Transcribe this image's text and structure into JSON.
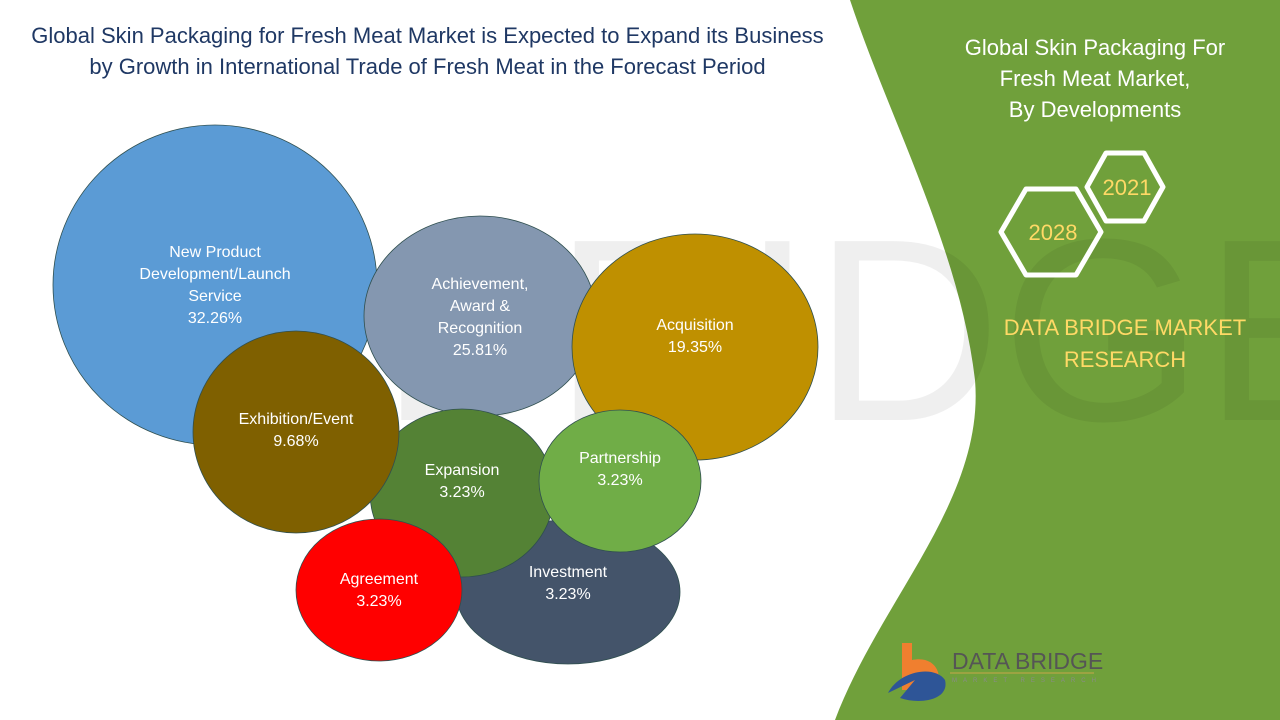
{
  "title": "Global Skin Packaging for Fresh Meat Market is Expected to Expand its Business by Growth in International Trade of Fresh Meat in the Forecast Period",
  "side_panel": {
    "title_lines": [
      "Global Skin Packaging For",
      "Fresh Meat Market,",
      "By Developments"
    ],
    "years": [
      "2021",
      "2028"
    ],
    "brand_lines": [
      "DATA BRIDGE MARKET",
      "RESEARCH"
    ],
    "logo_text": "DATA BRIDGE",
    "logo_subtext": "MARKET RESEARCH",
    "panel_color": "#70A03B",
    "accent_color": "#FFD966"
  },
  "chart_data": {
    "type": "bubble",
    "unit": "%",
    "categories": [
      "New Product Development/Launch Service",
      "Achievement, Award & Recognition",
      "Acquisition",
      "Investment",
      "Expansion",
      "Partnership",
      "Exhibition/Event",
      "Agreement"
    ],
    "label_lines": [
      [
        "New Product",
        "Development/Launch",
        "Service",
        "32.26%"
      ],
      [
        "Achievement,",
        "Award &",
        "Recognition",
        "25.81%"
      ],
      [
        "Acquisition",
        "19.35%"
      ],
      [
        "Investment",
        "3.23%"
      ],
      [
        "Expansion",
        "3.23%"
      ],
      [
        "Partnership",
        "3.23%"
      ],
      [
        "Exhibition/Event",
        "9.68%"
      ],
      [
        "Agreement",
        "3.23%"
      ]
    ],
    "values": [
      32.26,
      25.81,
      19.35,
      3.23,
      3.23,
      3.23,
      9.68,
      3.23
    ],
    "colors": [
      "#5B9BD5",
      "#8497B0",
      "#BF9000",
      "#44546A",
      "#548235",
      "#70AD47",
      "#7F6000",
      "#FF0000"
    ]
  }
}
